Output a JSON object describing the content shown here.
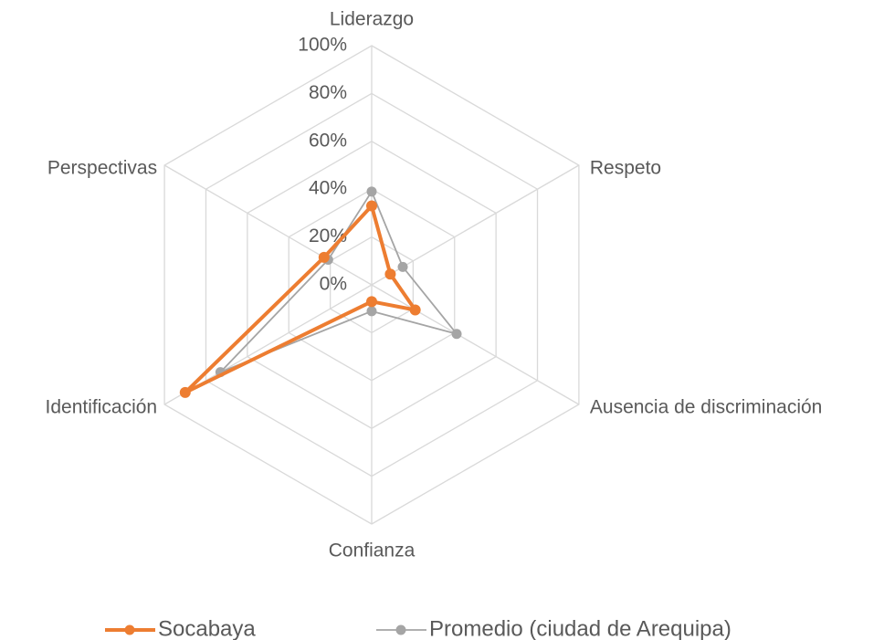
{
  "chart_data": {
    "type": "radar",
    "categories": [
      "Liderazgo",
      "Respeto",
      "Ausencia de discriminación",
      "Confianza",
      "Identificación",
      "Perspectivas"
    ],
    "series": [
      {
        "name": "Socabaya",
        "color": "#ed7d31",
        "values": [
          33,
          9,
          21,
          7,
          90,
          23
        ]
      },
      {
        "name": "Promedio (ciudad de Arequipa)",
        "color": "#a5a5a5",
        "values": [
          39,
          15,
          41,
          11,
          73,
          21
        ]
      }
    ],
    "ylim": [
      0,
      100
    ],
    "yticks": [
      {
        "value": 0,
        "label": "0%"
      },
      {
        "value": 20,
        "label": "20%"
      },
      {
        "value": 40,
        "label": "40%"
      },
      {
        "value": 60,
        "label": "60%"
      },
      {
        "value": 80,
        "label": "80%"
      },
      {
        "value": 100,
        "label": "100%"
      }
    ],
    "grid": true
  }
}
